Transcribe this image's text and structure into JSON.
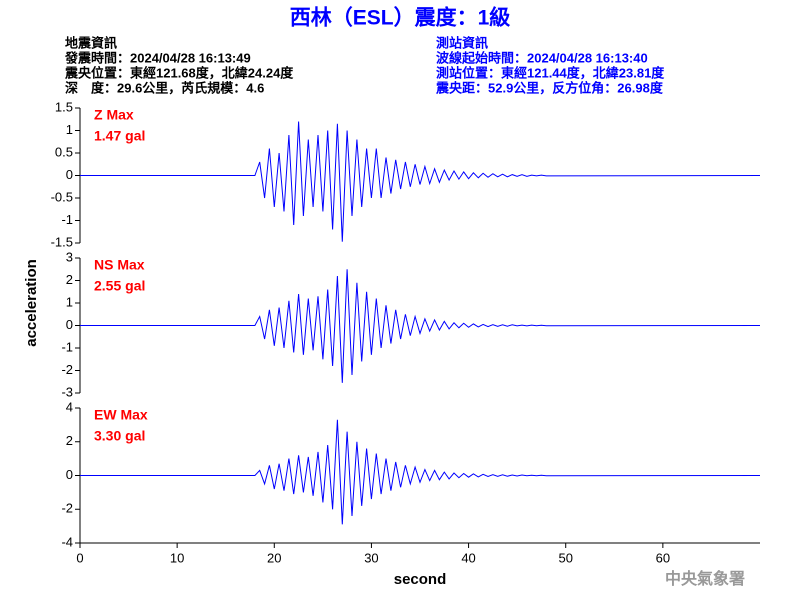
{
  "header": {
    "title": "西林（ESL）震度：1級",
    "left": [
      "地震資訊",
      "發震時間：2024/04/28 16:13:49",
      "震央位置：東經121.68度，北緯24.24度",
      "深　度：29.6公里，芮氏規模：4.6"
    ],
    "right": [
      "測站資訊",
      "波線起始時間：2024/04/28 16:13:40",
      "測站位置：東經121.44度，北緯23.81度",
      "震央距：52.9公里，反方位角：26.98度"
    ],
    "watermark": "中央氣象署"
  },
  "chart_data": {
    "type": "line",
    "xlabel": "second",
    "ylabel": "acceleration",
    "xlim": [
      0,
      70
    ],
    "xticks": [
      0,
      10,
      20,
      30,
      40,
      50,
      60
    ],
    "x": [
      0,
      18,
      18.5,
      19,
      19.5,
      20,
      20.5,
      21,
      21.5,
      22,
      22.5,
      23,
      23.5,
      24,
      24.5,
      25,
      25.5,
      26,
      26.5,
      27,
      27.5,
      28,
      28.5,
      29,
      29.5,
      30,
      30.5,
      31,
      31.5,
      32,
      32.5,
      33,
      33.5,
      34,
      34.5,
      35,
      35.5,
      36,
      36.5,
      37,
      37.5,
      38,
      38.5,
      39,
      39.5,
      40,
      40.5,
      41,
      41.5,
      42,
      42.5,
      43,
      43.5,
      44,
      44.5,
      45,
      45.5,
      46,
      46.5,
      47,
      47.5,
      48,
      70
    ],
    "panels": [
      {
        "name": "Z Max",
        "max_label": "1.47 gal",
        "color": "#0000ff",
        "ylim": [
          -1.5,
          1.5
        ],
        "yticks": [
          -1.5,
          -1,
          -0.5,
          0,
          0.5,
          1,
          1.5
        ],
        "values": [
          0,
          0,
          0.3,
          -0.5,
          0.6,
          -0.7,
          0.5,
          -0.8,
          0.9,
          -1.1,
          1.2,
          -0.9,
          0.8,
          -0.7,
          0.9,
          -0.8,
          1.0,
          -1.2,
          1.15,
          -1.47,
          1.0,
          -0.9,
          0.8,
          -0.7,
          0.6,
          -0.5,
          0.6,
          -0.5,
          0.4,
          -0.4,
          0.35,
          -0.3,
          0.3,
          -0.25,
          0.25,
          -0.2,
          0.2,
          -0.18,
          0.15,
          -0.15,
          0.12,
          -0.1,
          0.1,
          -0.08,
          0.08,
          -0.07,
          0.06,
          -0.05,
          0.05,
          -0.04,
          0.04,
          -0.03,
          0.03,
          -0.03,
          0.02,
          -0.02,
          0.02,
          -0.02,
          0.01,
          -0.01,
          0.01,
          -0.01,
          0
        ]
      },
      {
        "name": "NS Max",
        "max_label": "2.55 gal",
        "color": "#0000ff",
        "ylim": [
          -3,
          3
        ],
        "yticks": [
          -3,
          -2,
          -1,
          0,
          1,
          2,
          3
        ],
        "values": [
          0,
          0,
          0.4,
          -0.6,
          0.7,
          -0.9,
          0.8,
          -1.0,
          1.1,
          -1.2,
          1.4,
          -1.3,
          1.2,
          -1.1,
          1.3,
          -1.5,
          1.6,
          -1.8,
          2.2,
          -2.55,
          2.5,
          -2.2,
          1.9,
          -1.6,
          1.5,
          -1.3,
          1.2,
          -1.0,
          0.9,
          -0.8,
          0.7,
          -0.6,
          0.5,
          -0.45,
          0.4,
          -0.35,
          0.3,
          -0.25,
          0.25,
          -0.2,
          0.18,
          -0.15,
          0.12,
          -0.1,
          0.1,
          -0.08,
          0.07,
          -0.06,
          0.05,
          -0.05,
          0.04,
          -0.04,
          0.03,
          -0.03,
          0.03,
          -0.02,
          0.02,
          -0.02,
          0.02,
          -0.01,
          0.01,
          -0.01,
          0
        ]
      },
      {
        "name": "EW Max",
        "max_label": "3.30 gal",
        "color": "#0000ff",
        "ylim": [
          -4,
          4
        ],
        "yticks": [
          -4,
          -2,
          0,
          2,
          4
        ],
        "values": [
          0,
          0,
          0.3,
          -0.5,
          0.6,
          -0.8,
          0.7,
          -0.9,
          1.0,
          -1.1,
          1.2,
          -1.0,
          1.1,
          -1.2,
          1.4,
          -1.6,
          1.8,
          -2.0,
          3.3,
          -2.9,
          2.6,
          -2.4,
          2.0,
          -1.8,
          1.6,
          -1.4,
          1.3,
          -1.1,
          1.0,
          -0.9,
          0.8,
          -0.7,
          0.6,
          -0.5,
          0.5,
          -0.4,
          0.35,
          -0.3,
          0.3,
          -0.25,
          0.2,
          -0.2,
          0.15,
          -0.13,
          0.12,
          -0.1,
          0.1,
          -0.08,
          0.07,
          -0.06,
          0.05,
          -0.05,
          0.04,
          -0.04,
          0.03,
          -0.03,
          0.03,
          -0.02,
          0.02,
          -0.02,
          0.01,
          -0.01,
          0
        ]
      }
    ]
  }
}
